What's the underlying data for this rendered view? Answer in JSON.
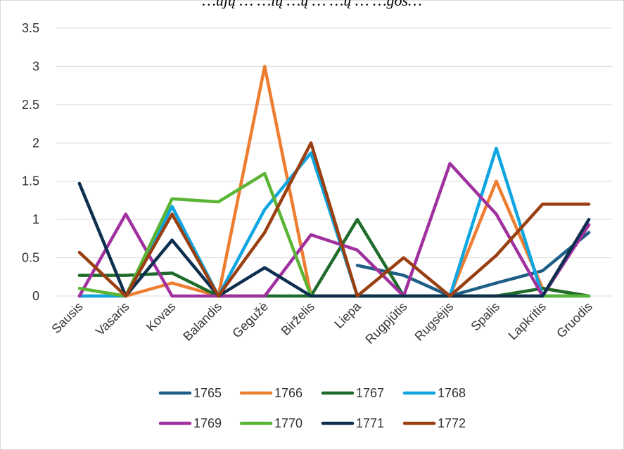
{
  "chart_data": {
    "type": "line",
    "title": "…ujų … …ių …ų … …ų … …gos…",
    "xlabel": "",
    "ylabel": "",
    "ylim": [
      0,
      3.5
    ],
    "yticks": [
      "0",
      "0.5",
      "1",
      "1.5",
      "2",
      "2.5",
      "3",
      "3.5"
    ],
    "grid": true,
    "legend_position": "bottom",
    "categories": [
      "Sausis",
      "Vasaris",
      "Kovas",
      "Balandis",
      "Gegužė",
      "Birželis",
      "Liepa",
      "Rugpjūtis",
      "Rugsėjis",
      "Spalis",
      "Lapkritis",
      "Gruodis"
    ],
    "series": [
      {
        "name": "1765",
        "color": "#1f5f86",
        "values": [
          null,
          null,
          null,
          null,
          null,
          null,
          0.4,
          0.27,
          0.0,
          0.17,
          0.33,
          0.83
        ]
      },
      {
        "name": "1766",
        "color": "#ed7d31",
        "values": [
          0.0,
          0.0,
          0.17,
          0.0,
          3.0,
          0.0,
          0.0,
          0.0,
          0.0,
          1.5,
          0.1,
          0.0
        ]
      },
      {
        "name": "1767",
        "color": "#1e6b2a",
        "values": [
          0.27,
          0.27,
          0.3,
          0.0,
          0.0,
          0.0,
          1.0,
          0.0,
          0.0,
          0.0,
          0.1,
          0.0
        ]
      },
      {
        "name": "1768",
        "color": "#0ea5e0",
        "values": [
          0.0,
          0.0,
          1.17,
          0.0,
          1.13,
          1.87,
          0.0,
          0.0,
          0.0,
          1.93,
          0.0,
          0.0
        ]
      },
      {
        "name": "1769",
        "color": "#a0319f",
        "values": [
          0.0,
          1.07,
          0.0,
          0.0,
          0.0,
          0.8,
          0.6,
          0.0,
          1.73,
          1.07,
          0.0,
          0.93
        ]
      },
      {
        "name": "1770",
        "color": "#5bb534",
        "values": [
          0.1,
          0.0,
          1.27,
          1.23,
          1.6,
          0.0,
          0.0,
          0.0,
          0.0,
          0.0,
          0.0,
          0.0
        ]
      },
      {
        "name": "1771",
        "color": "#0d2f4f",
        "values": [
          1.47,
          0.0,
          0.73,
          0.0,
          0.37,
          0.0,
          0.0,
          0.0,
          0.0,
          0.0,
          0.0,
          1.0
        ]
      },
      {
        "name": "1772",
        "color": "#9a3f12",
        "values": [
          0.57,
          0.0,
          1.07,
          0.0,
          0.83,
          2.0,
          0.0,
          0.5,
          0.0,
          0.53,
          1.2,
          1.2
        ]
      }
    ]
  }
}
